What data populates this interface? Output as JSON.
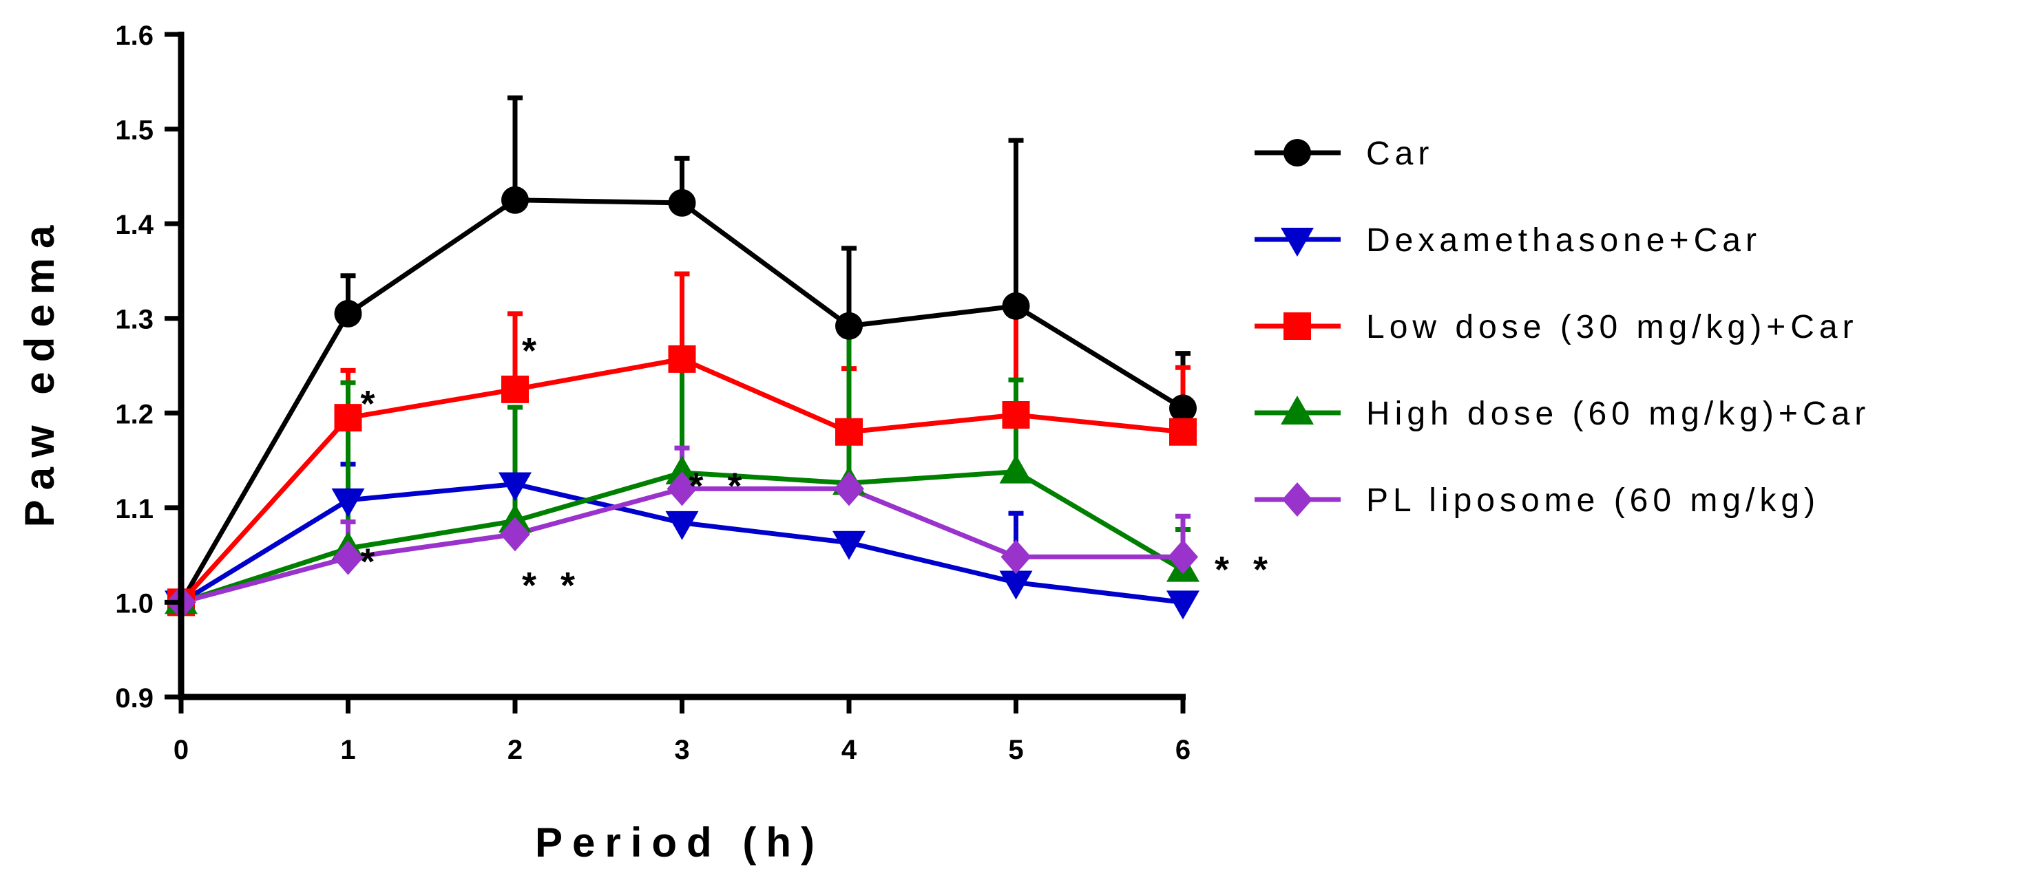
{
  "chart_data": {
    "type": "line",
    "title": "",
    "xlabel": "Period (h)",
    "ylabel": "Paw edema",
    "x": [
      0,
      1,
      2,
      3,
      4,
      5,
      6
    ],
    "xticks": [
      "0",
      "1",
      "2",
      "3",
      "4",
      "5",
      "6"
    ],
    "yticks": [
      "0.9",
      "1.0",
      "1.1",
      "1.2",
      "1.3",
      "1.4",
      "1.5",
      "1.6"
    ],
    "xlim": [
      0,
      6
    ],
    "ylim": [
      0.9,
      1.6
    ],
    "grid": false,
    "legend_position": "right",
    "series": [
      {
        "name": "Car",
        "color": "#000000",
        "marker": "circle",
        "values": [
          1.0,
          1.305,
          1.425,
          1.422,
          1.292,
          1.313,
          1.205
        ],
        "error": [
          0,
          0.04,
          0.108,
          0.047,
          0.082,
          0.175,
          0.058
        ]
      },
      {
        "name": "Dexamethasone+Car",
        "color": "#0000cc",
        "marker": "triangle-down",
        "values": [
          1.0,
          1.108,
          1.125,
          1.084,
          1.063,
          1.021,
          1.0
        ],
        "error": [
          0,
          0.038,
          0,
          0,
          0,
          0.073,
          0
        ]
      },
      {
        "name": "Low dose (30 mg/kg)+Car",
        "color": "#ff0000",
        "marker": "square",
        "values": [
          1.0,
          1.195,
          1.225,
          1.257,
          1.18,
          1.198,
          1.18
        ],
        "error": [
          0,
          0.05,
          0.08,
          0.09,
          0.067,
          0.12,
          0.068
        ]
      },
      {
        "name": "High dose (60 mg/kg)+Car",
        "color": "#008000",
        "marker": "triangle-up",
        "values": [
          1.0,
          1.057,
          1.086,
          1.137,
          1.126,
          1.138,
          1.034
        ],
        "error": [
          0,
          0.175,
          0.12,
          0.115,
          0.17,
          0.097,
          0.043
        ]
      },
      {
        "name": "PL liposome (60 mg/kg)",
        "color": "#9933cc",
        "marker": "diamond",
        "values": [
          1.0,
          1.047,
          1.072,
          1.12,
          1.12,
          1.048,
          1.048
        ],
        "error": [
          0,
          0.038,
          0,
          0.043,
          0,
          0,
          0.043
        ]
      }
    ],
    "annotations": [
      {
        "text": "*",
        "x": 1,
        "y": 1.195
      },
      {
        "text": "*",
        "x": 2,
        "y": 1.225
      },
      {
        "text": "*",
        "x": 1,
        "y": 1.05
      },
      {
        "text": "* *",
        "x": 2,
        "y": 1.07
      },
      {
        "text": "* *",
        "x": 3,
        "y": 1.13
      },
      {
        "text": "* *",
        "x": 6,
        "y": 1.03
      }
    ]
  }
}
